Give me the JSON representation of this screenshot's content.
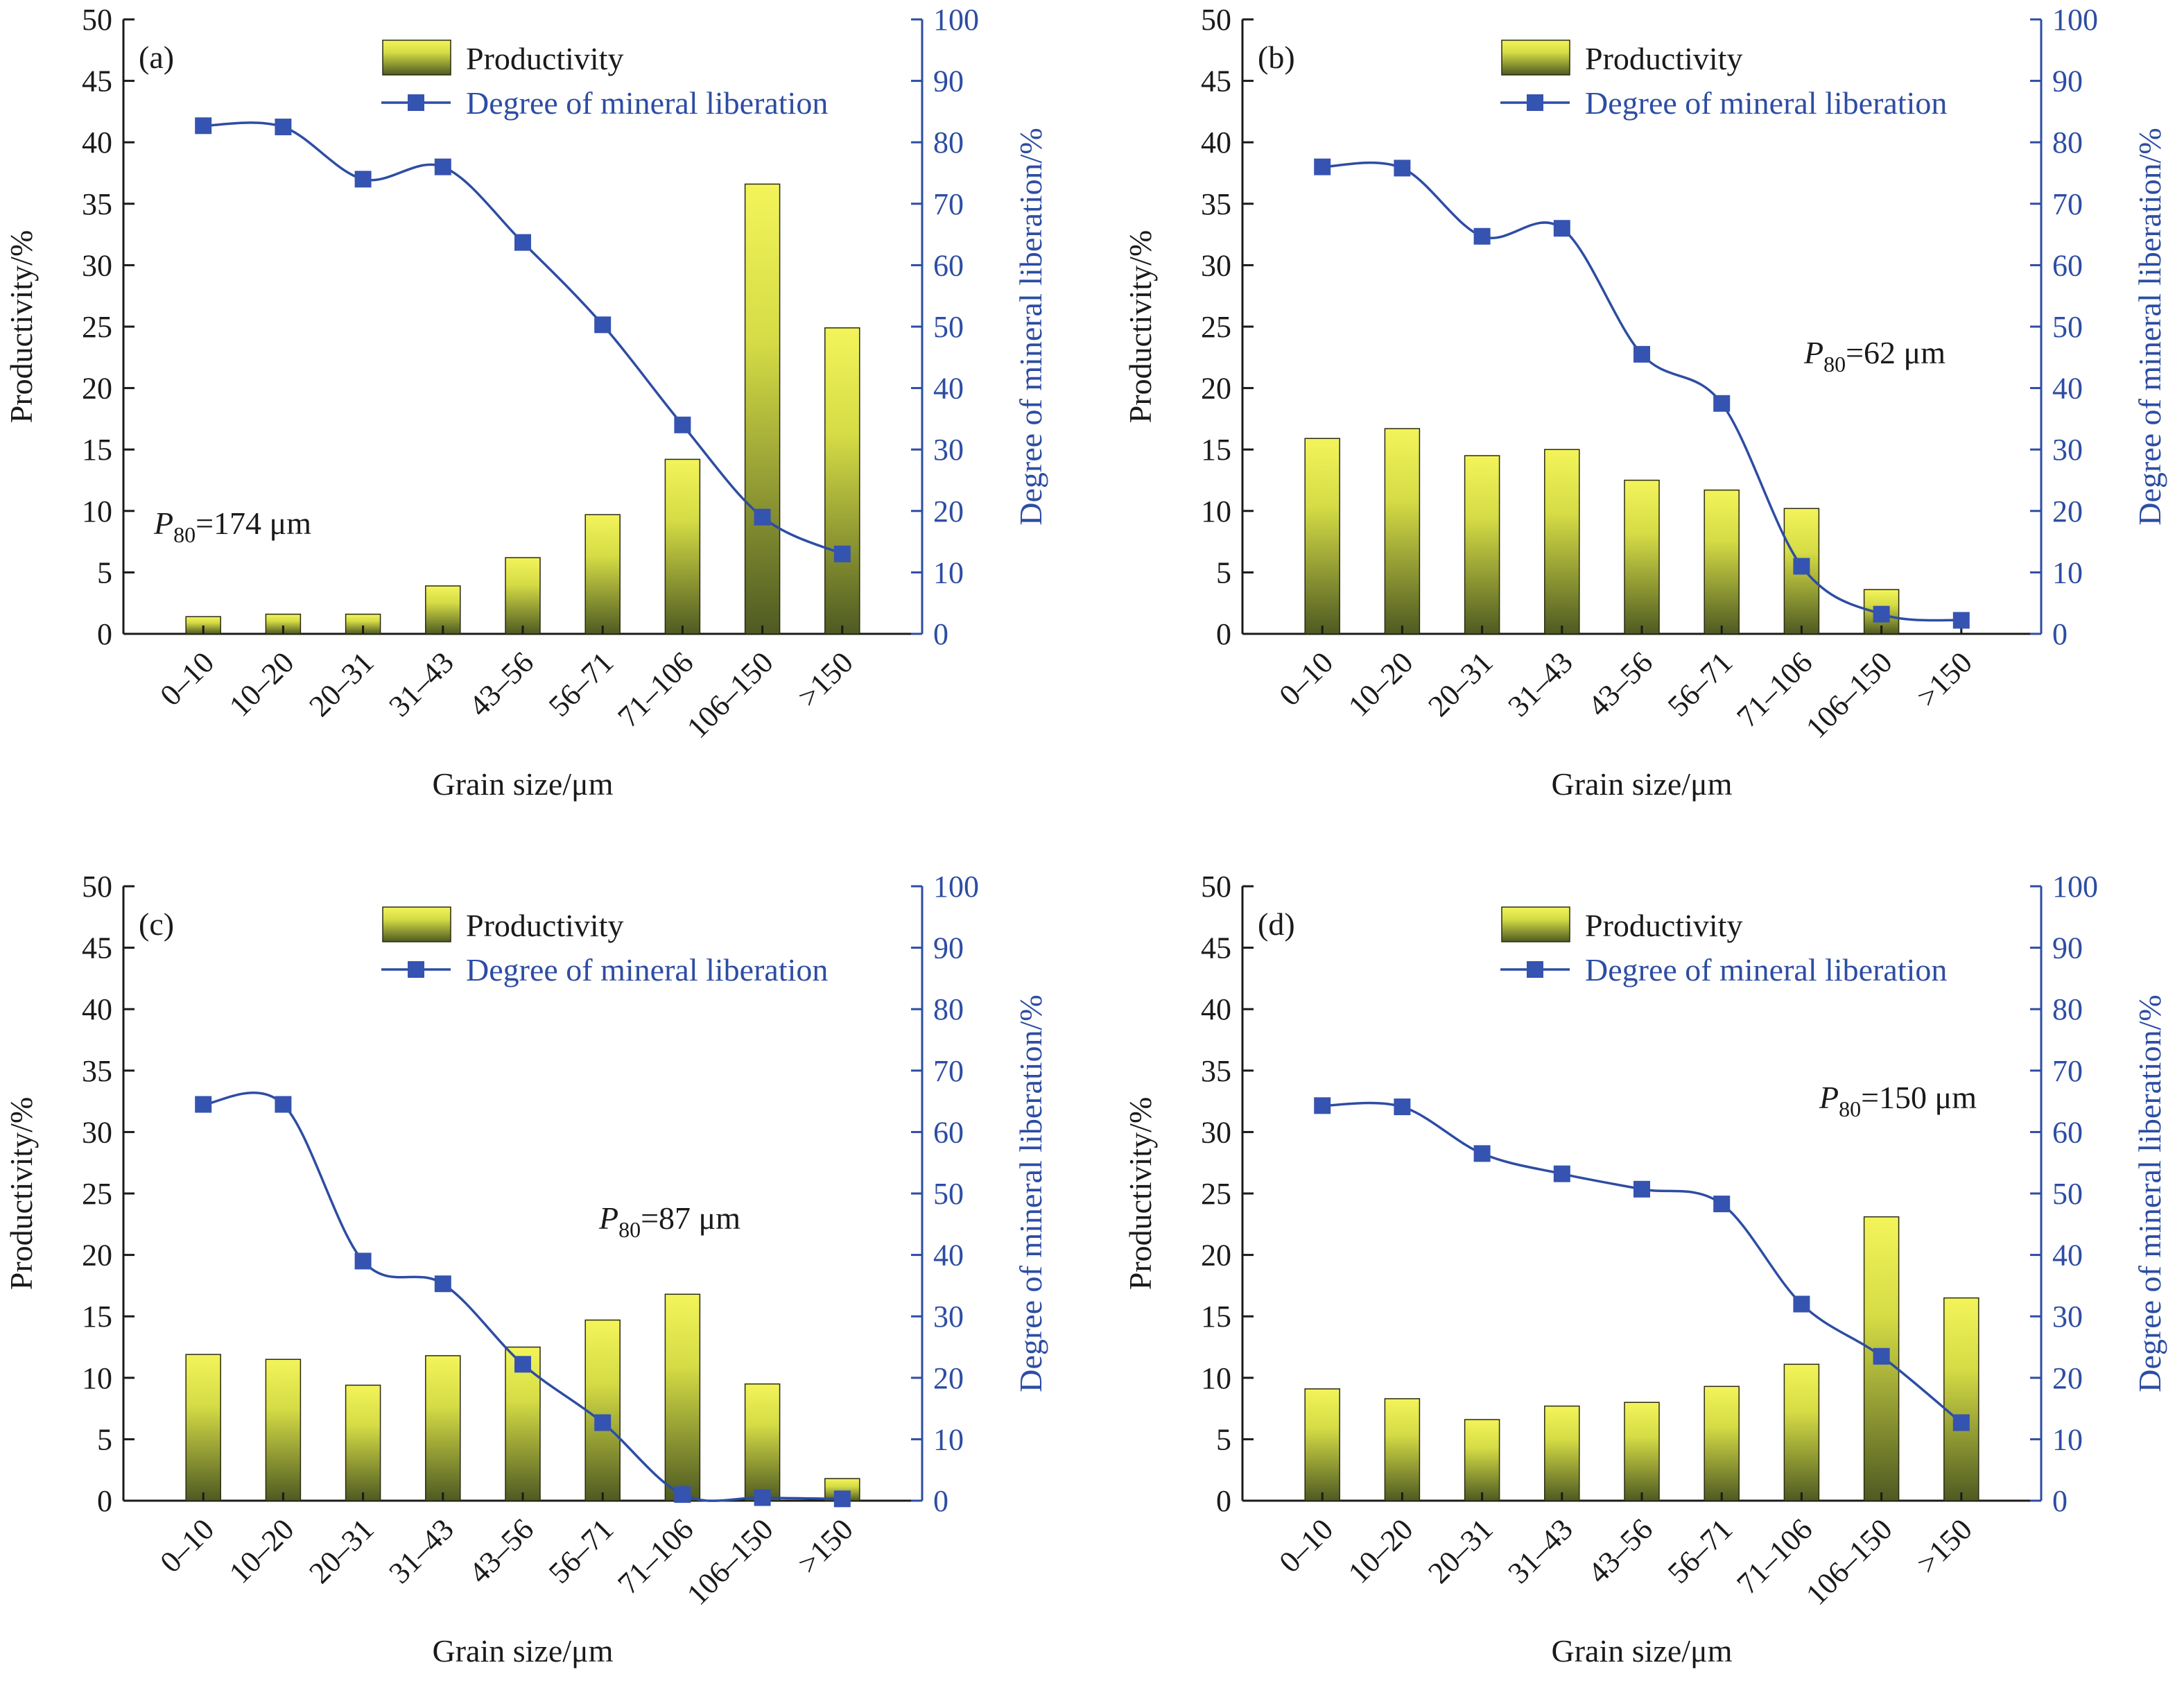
{
  "figure": {
    "colors": {
      "bar_light": "#f3f45a",
      "bar_dark": "#4e5a22",
      "line": "#2d4da3",
      "marker": "#3553b0",
      "axis_left": "#1a1a1a",
      "axis_right": "#2d4da3"
    }
  },
  "chart_data": [
    {
      "type": "bar",
      "panel_label": "(a)",
      "p80_value": "=174 μm",
      "p80_prefix": "P",
      "p80_sub": "80",
      "categories": [
        "0–10",
        "10–20",
        "20–31",
        "31–43",
        "43–56",
        "56–71",
        "71–106",
        "106–150",
        ">150"
      ],
      "series": [
        {
          "name": "Productivity",
          "type": "bar",
          "axis": "left",
          "values": [
            1.4,
            1.6,
            1.6,
            3.9,
            6.2,
            9.7,
            14.2,
            36.6,
            24.9
          ]
        },
        {
          "name": "Degree of mineral liberation",
          "type": "line",
          "axis": "right",
          "values": [
            82.7,
            82.5,
            74.0,
            76.0,
            63.7,
            50.3,
            34.0,
            19.0,
            13.0
          ]
        }
      ],
      "xlabel": "Grain size/μm",
      "ylabel": "Productivity/%",
      "y2label": "Degree of mineral liberation/%",
      "ylim": [
        0,
        50
      ],
      "y2lim": [
        0,
        100
      ],
      "yticks": [
        "0",
        "5",
        "10",
        "15",
        "20",
        "25",
        "30",
        "35",
        "40",
        "45",
        "50"
      ],
      "y2ticks": [
        "0",
        "10",
        "20",
        "30",
        "40",
        "50",
        "60",
        "70",
        "80",
        "90",
        "100"
      ],
      "legend_position": "top-right"
    },
    {
      "type": "bar",
      "panel_label": "(b)",
      "p80_value": "=62 μm",
      "p80_prefix": "P",
      "p80_sub": "80",
      "categories": [
        "0–10",
        "10–20",
        "20–31",
        "31–43",
        "43–56",
        "56–71",
        "71–106",
        "106–150",
        ">150"
      ],
      "series": [
        {
          "name": "Productivity",
          "type": "bar",
          "axis": "left",
          "values": [
            15.9,
            16.7,
            14.5,
            15.0,
            12.5,
            11.7,
            10.2,
            3.6,
            0
          ]
        },
        {
          "name": "Degree of mineral liberation",
          "type": "line",
          "axis": "right",
          "values": [
            76.0,
            75.8,
            64.7,
            66.0,
            45.5,
            37.5,
            11.0,
            3.2,
            2.2
          ]
        }
      ],
      "xlabel": "Grain size/μm",
      "ylabel": "Productivity/%",
      "y2label": "Degree of mineral liberation/%",
      "ylim": [
        0,
        50
      ],
      "y2lim": [
        0,
        100
      ],
      "yticks": [
        "0",
        "5",
        "10",
        "15",
        "20",
        "25",
        "30",
        "35",
        "40",
        "45",
        "50"
      ],
      "y2ticks": [
        "0",
        "10",
        "20",
        "30",
        "40",
        "50",
        "60",
        "70",
        "80",
        "90",
        "100"
      ],
      "legend_position": "top-right"
    },
    {
      "type": "bar",
      "panel_label": "(c)",
      "p80_value": "=87 μm",
      "p80_prefix": "P",
      "p80_sub": "80",
      "categories": [
        "0–10",
        "10–20",
        "20–31",
        "31–43",
        "43–56",
        "56–71",
        "71–106",
        "106–150",
        ">150"
      ],
      "series": [
        {
          "name": "Productivity",
          "type": "bar",
          "axis": "left",
          "values": [
            11.9,
            11.5,
            9.4,
            11.8,
            12.5,
            14.7,
            16.8,
            9.5,
            1.8
          ]
        },
        {
          "name": "Degree of mineral liberation",
          "type": "line",
          "axis": "right",
          "values": [
            64.5,
            64.5,
            39.0,
            35.3,
            22.2,
            12.7,
            1.0,
            0.5,
            0.3
          ]
        }
      ],
      "xlabel": "Grain size/μm",
      "ylabel": "Productivity/%",
      "y2label": "Degree of mineral liberation/%",
      "ylim": [
        0,
        50
      ],
      "y2lim": [
        0,
        100
      ],
      "yticks": [
        "0",
        "5",
        "10",
        "15",
        "20",
        "25",
        "30",
        "35",
        "40",
        "45",
        "50"
      ],
      "y2ticks": [
        "0",
        "10",
        "20",
        "30",
        "40",
        "50",
        "60",
        "70",
        "80",
        "90",
        "100"
      ],
      "legend_position": "top-right"
    },
    {
      "type": "bar",
      "panel_label": "(d)",
      "p80_value": "=150 μm",
      "p80_prefix": "P",
      "p80_sub": "80",
      "categories": [
        "0–10",
        "10–20",
        "20–31",
        "31–43",
        "43–56",
        "56–71",
        "71–106",
        "106–150",
        ">150"
      ],
      "series": [
        {
          "name": "Productivity",
          "type": "bar",
          "axis": "left",
          "values": [
            9.1,
            8.3,
            6.6,
            7.7,
            8.0,
            9.3,
            11.1,
            23.1,
            16.5
          ]
        },
        {
          "name": "Degree of mineral liberation",
          "type": "line",
          "axis": "right",
          "values": [
            64.3,
            64.1,
            56.5,
            53.2,
            50.7,
            48.3,
            32.0,
            23.5,
            12.7
          ]
        }
      ],
      "xlabel": "Grain size/μm",
      "ylabel": "Productivity/%",
      "y2label": "Degree of mineral liberation/%",
      "ylim": [
        0,
        50
      ],
      "y2lim": [
        0,
        100
      ],
      "yticks": [
        "0",
        "5",
        "10",
        "15",
        "20",
        "25",
        "30",
        "35",
        "40",
        "45",
        "50"
      ],
      "y2ticks": [
        "0",
        "10",
        "20",
        "30",
        "40",
        "50",
        "60",
        "70",
        "80",
        "90",
        "100"
      ],
      "legend_position": "top-right"
    }
  ]
}
